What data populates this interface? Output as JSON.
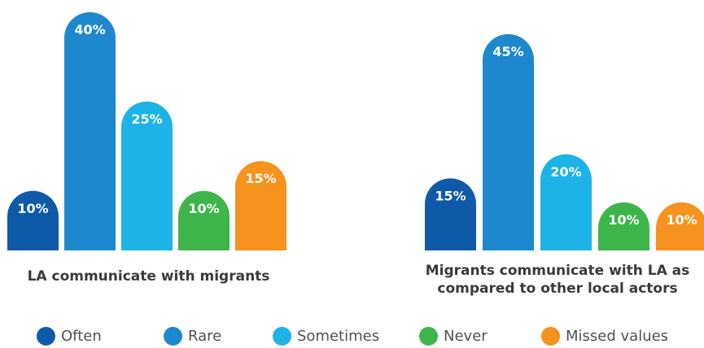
{
  "legend": {
    "items": [
      {
        "label": "Often",
        "color": "#0F5AA8"
      },
      {
        "label": "Rare",
        "color": "#1E88CF"
      },
      {
        "label": "Sometimes",
        "color": "#1DB3E6"
      },
      {
        "label": "Never",
        "color": "#3DB54A"
      },
      {
        "label": "Missed values",
        "color": "#F6921E"
      }
    ]
  },
  "chart_data": [
    {
      "type": "bar",
      "title": "LA communicate with migrants",
      "categories": [
        "Often",
        "Rare",
        "Sometimes",
        "Never",
        "Missed values"
      ],
      "values": [
        10,
        40,
        25,
        10,
        15
      ],
      "labels": [
        "10%",
        "40%",
        "25%",
        "10%",
        "15%"
      ],
      "ylim": [
        0,
        40
      ],
      "grid": false
    },
    {
      "type": "bar",
      "title_lines": [
        "Migrants communicate with LA as",
        "compared to other local actors"
      ],
      "categories": [
        "Often",
        "Rare",
        "Sometimes",
        "Never",
        "Missed values"
      ],
      "values": [
        15,
        45,
        20,
        10,
        10
      ],
      "labels": [
        "15%",
        "45%",
        "20%",
        "10%",
        "10%"
      ],
      "ylim": [
        0,
        45
      ],
      "grid": false
    }
  ]
}
